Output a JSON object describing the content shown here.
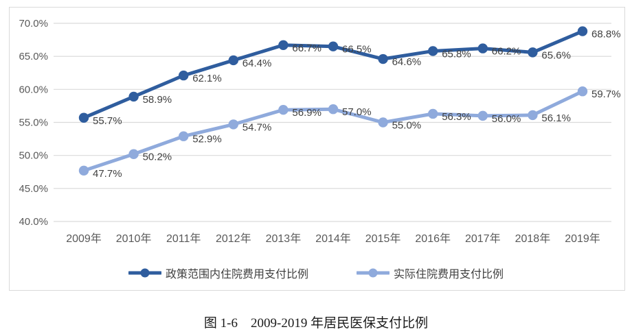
{
  "figure": {
    "caption": "图 1-6　2009-2019 年居民医保支付比例"
  },
  "chart_data": {
    "type": "line",
    "title": "",
    "xlabel": "",
    "ylabel": "",
    "categories": [
      "2009年",
      "2010年",
      "2011年",
      "2012年",
      "2013年",
      "2014年",
      "2015年",
      "2016年",
      "2017年",
      "2018年",
      "2019年"
    ],
    "series": [
      {
        "name": "政策范围内住院费用支付比例",
        "color": "#2f5d9e",
        "values": [
          55.7,
          58.9,
          62.1,
          64.4,
          66.7,
          66.5,
          64.6,
          65.8,
          66.2,
          65.6,
          68.8
        ]
      },
      {
        "name": "实际住院费用支付比例",
        "color": "#8faadc",
        "values": [
          47.7,
          50.2,
          52.9,
          54.7,
          56.9,
          57.0,
          55.0,
          56.3,
          56.0,
          56.1,
          59.7
        ]
      }
    ],
    "ylim": [
      40,
      70
    ],
    "ytick_step": 5,
    "ytick_labels": [
      "40.0%",
      "45.0%",
      "50.0%",
      "55.0%",
      "60.0%",
      "65.0%",
      "70.0%"
    ],
    "data_labels": true,
    "grid": true,
    "legend_position": "bottom",
    "gridline_color": "#d9d9d9",
    "border_color": "#d9d9d9",
    "axis_text_color": "#595959",
    "data_label_color": "#404040"
  }
}
